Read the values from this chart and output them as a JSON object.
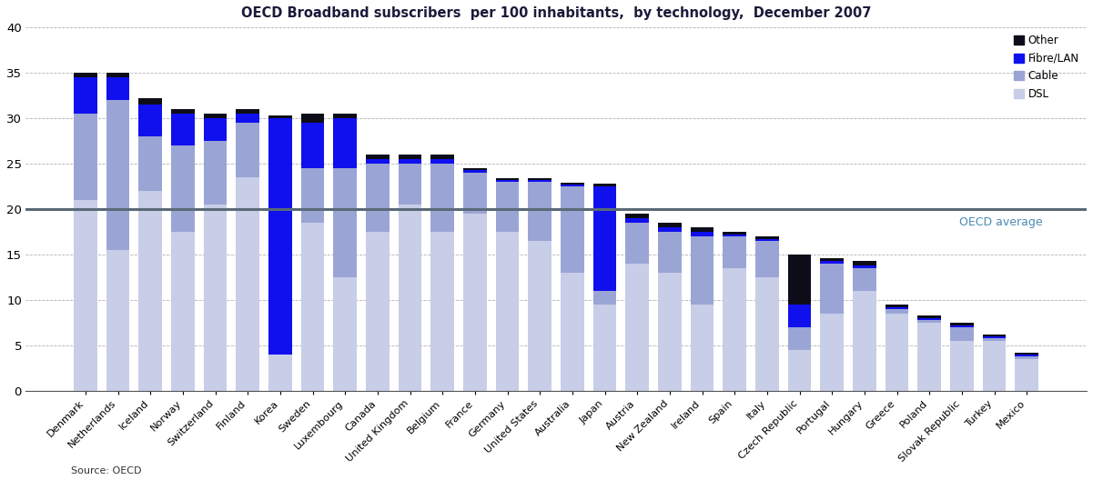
{
  "title": "OECD Broadband subscribers  per 100 inhabitants,  by technology,  December 2007",
  "source": "Source: OECD",
  "oecd_average": 20.0,
  "oecd_avg_label": "OECD average",
  "ylim": [
    0,
    40
  ],
  "yticks": [
    0,
    5,
    10,
    15,
    20,
    25,
    30,
    35,
    40
  ],
  "color_DSL": "#c8cde8",
  "color_Cable": "#9ba5d5",
  "color_Fibre": "#1010ee",
  "color_Other": "#0d0d1a",
  "color_avg_line": "#5a6a78",
  "color_avg_text": "#4a8ab5",
  "countries": [
    "Denmark",
    "Netherlands",
    "Iceland",
    "Norway",
    "Switzerland",
    "Finland",
    "Korea",
    "Sweden",
    "Luxembourg",
    "Canada",
    "United Kingdom",
    "Belgium",
    "France",
    "Germany",
    "United States",
    "Australia",
    "Japan",
    "Austria",
    "New Zealand",
    "Ireland",
    "Spain",
    "Italy",
    "Czech Republic",
    "Portugal",
    "Hungary",
    "Greece",
    "Poland",
    "Slovak Republic",
    "Turkey",
    "Mexico"
  ],
  "DSL": [
    21.0,
    15.5,
    22.0,
    17.5,
    20.5,
    23.5,
    4.0,
    18.5,
    12.5,
    17.5,
    20.5,
    17.5,
    19.5,
    17.5,
    16.5,
    13.0,
    9.5,
    14.0,
    13.0,
    9.5,
    13.5,
    12.5,
    4.5,
    8.5,
    11.0,
    8.5,
    7.5,
    5.5,
    5.5,
    3.5
  ],
  "Cable": [
    9.5,
    16.5,
    6.0,
    9.5,
    7.0,
    6.0,
    0.0,
    6.0,
    12.0,
    7.5,
    4.5,
    7.5,
    4.5,
    5.5,
    6.5,
    9.5,
    1.5,
    4.5,
    4.5,
    7.5,
    3.5,
    4.0,
    2.5,
    5.5,
    2.5,
    0.5,
    0.3,
    1.5,
    0.3,
    0.3
  ],
  "Fibre": [
    4.0,
    2.5,
    3.5,
    3.5,
    2.5,
    1.0,
    26.0,
    5.0,
    5.5,
    0.5,
    0.5,
    0.5,
    0.3,
    0.2,
    0.2,
    0.2,
    11.5,
    0.5,
    0.5,
    0.5,
    0.2,
    0.2,
    2.5,
    0.3,
    0.3,
    0.2,
    0.2,
    0.2,
    0.2,
    0.2
  ],
  "Other": [
    0.5,
    0.5,
    0.7,
    0.5,
    0.5,
    0.5,
    0.3,
    1.0,
    0.5,
    0.5,
    0.5,
    0.5,
    0.2,
    0.2,
    0.2,
    0.2,
    0.3,
    0.5,
    0.5,
    0.5,
    0.3,
    0.3,
    5.5,
    0.3,
    0.5,
    0.3,
    0.3,
    0.3,
    0.2,
    0.2
  ]
}
